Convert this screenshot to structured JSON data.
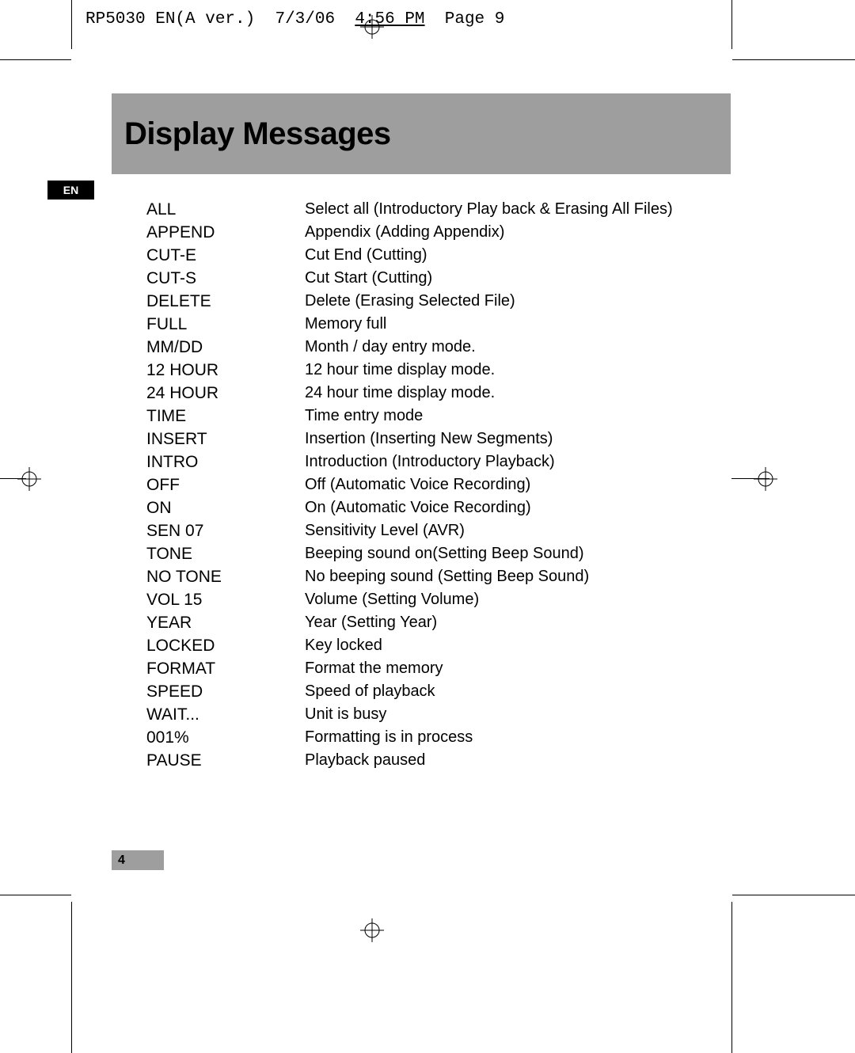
{
  "meta": {
    "filename": "RP5030 EN(A ver.)",
    "date": "7/3/06",
    "time": "4:56 PM",
    "page_label": "Page 9"
  },
  "title": "Display Messages",
  "language_badge": "EN",
  "page_number": "4",
  "colors": {
    "title_bar_bg": "#9e9e9e",
    "page_number_bg": "#9e9e9e",
    "badge_bg": "#000000",
    "badge_text": "#ffffff",
    "text": "#000000",
    "background": "#ffffff"
  },
  "messages": [
    {
      "term": "ALL",
      "desc": "Select all (Introductory Play back & Erasing All Files)"
    },
    {
      "term": "APPEND",
      "desc": "Appendix (Adding Appendix)"
    },
    {
      "term": "CUT-E",
      "desc": "Cut End (Cutting)"
    },
    {
      "term": "CUT-S",
      "desc": "Cut Start (Cutting)"
    },
    {
      "term": "DELETE",
      "desc": "Delete (Erasing Selected File)"
    },
    {
      "term": "FULL",
      "desc": "Memory full"
    },
    {
      "term": "MM/DD",
      "desc": "Month / day entry mode."
    },
    {
      "term": "12 HOUR",
      "desc": "12 hour time display mode."
    },
    {
      "term": "24 HOUR",
      "desc": "24 hour time display mode."
    },
    {
      "term": "TIME",
      "desc": "Time entry mode"
    },
    {
      "term": "INSERT",
      "desc": "Insertion (Inserting New Segments)"
    },
    {
      "term": "INTRO",
      "desc": "Introduction (Introductory Playback)"
    },
    {
      "term": "OFF",
      "desc": "Off (Automatic Voice Recording)"
    },
    {
      "term": "ON",
      "desc": "On (Automatic Voice Recording)"
    },
    {
      "term": "SEN 07",
      "desc": "Sensitivity Level (AVR)"
    },
    {
      "term": "TONE",
      "desc": "Beeping sound on(Setting Beep Sound)"
    },
    {
      "term": "NO TONE",
      "desc": "No beeping sound (Setting Beep Sound)"
    },
    {
      "term": "VOL 15",
      "desc": "Volume (Setting Volume)"
    },
    {
      "term": "YEAR",
      "desc": "Year (Setting Year)"
    },
    {
      "term": "LOCKED",
      "desc": "Key locked"
    },
    {
      "term": "FORMAT",
      "desc": "Format the memory"
    },
    {
      "term": "SPEED",
      "desc": "Speed of playback"
    },
    {
      "term": "WAIT...",
      "desc": "Unit is busy"
    },
    {
      "term": "001%",
      "desc": "Formatting is in process"
    },
    {
      "term": "PAUSE",
      "desc": "Playback paused"
    }
  ]
}
